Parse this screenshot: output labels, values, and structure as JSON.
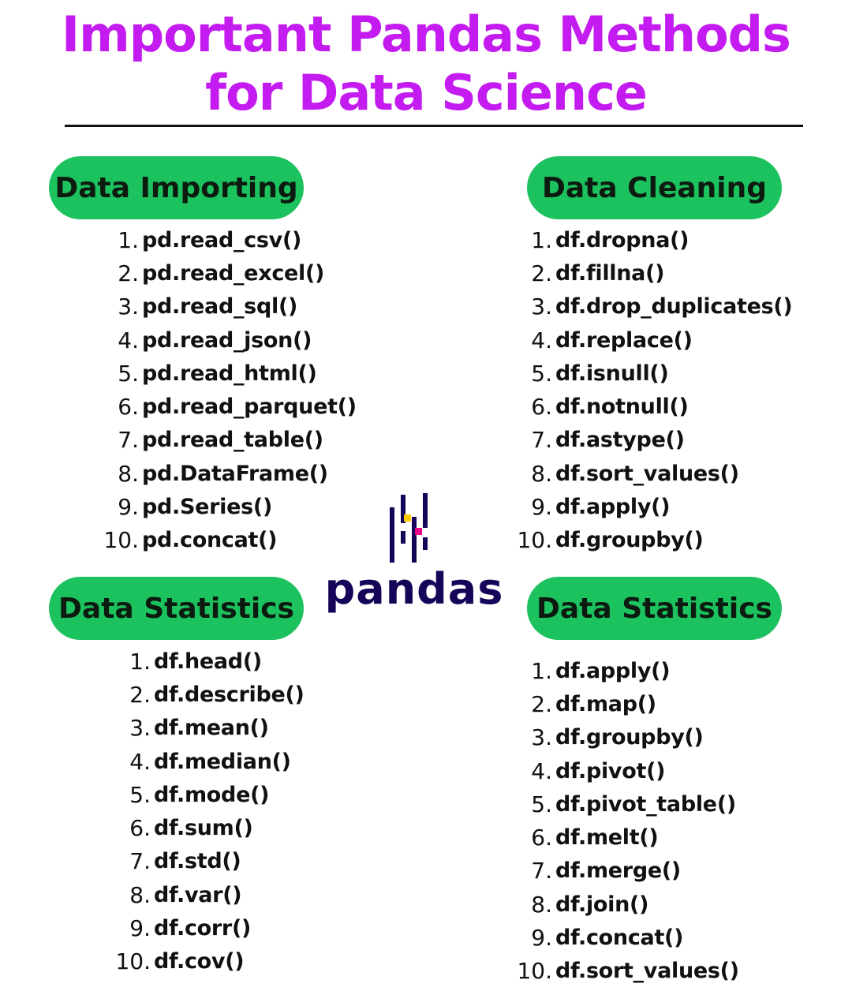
{
  "title": {
    "line1": "Important Pandas Methods",
    "line2": "for Data Science",
    "color": "#c41bf0"
  },
  "colors": {
    "pill": "#1cc25e",
    "logo_primary": "#150458",
    "logo_yellow": "#ffca00",
    "logo_pink": "#e70488"
  },
  "logo": {
    "icon": "pandas-logo-icon",
    "text": "pandas"
  },
  "sections": [
    {
      "heading": "Data Importing",
      "items": [
        {
          "num": "1.",
          "method": "pd.read_csv()"
        },
        {
          "num": "2.",
          "method": "pd.read_excel()"
        },
        {
          "num": "3.",
          "method": "pd.read_sql()"
        },
        {
          "num": "4.",
          "method": "pd.read_json()"
        },
        {
          "num": "5.",
          "method": "pd.read_html()"
        },
        {
          "num": "6.",
          "method": "pd.read_parquet()"
        },
        {
          "num": "7.",
          "method": "pd.read_table()"
        },
        {
          "num": "8.",
          "method": "pd.DataFrame()"
        },
        {
          "num": "9.",
          "method": "pd.Series()"
        },
        {
          "num": "10.",
          "method": "pd.concat()"
        }
      ]
    },
    {
      "heading": "Data Cleaning",
      "items": [
        {
          "num": "1.",
          "method": "df.dropna()"
        },
        {
          "num": "2.",
          "method": "df.fillna()"
        },
        {
          "num": "3.",
          "method": "df.drop_duplicates()"
        },
        {
          "num": "4.",
          "method": "df.replace()"
        },
        {
          "num": "5.",
          "method": "df.isnull()"
        },
        {
          "num": "6.",
          "method": "df.notnull()"
        },
        {
          "num": "7.",
          "method": "df.astype()"
        },
        {
          "num": "8.",
          "method": "df.sort_values()"
        },
        {
          "num": "9.",
          "method": "df.apply()"
        },
        {
          "num": "10.",
          "method": "df.groupby()"
        }
      ]
    },
    {
      "heading": "Data Statistics",
      "items": [
        {
          "num": "1.",
          "method": "df.head()"
        },
        {
          "num": "2.",
          "method": "df.describe()"
        },
        {
          "num": "3.",
          "method": "df.mean()"
        },
        {
          "num": "4.",
          "method": "df.median()"
        },
        {
          "num": "5.",
          "method": "df.mode()"
        },
        {
          "num": "6.",
          "method": "df.sum()"
        },
        {
          "num": "7.",
          "method": "df.std()"
        },
        {
          "num": "8.",
          "method": "df.var()"
        },
        {
          "num": "9.",
          "method": "df.corr()"
        },
        {
          "num": "10.",
          "method": "df.cov()"
        }
      ]
    },
    {
      "heading": "Data Statistics",
      "items": [
        {
          "num": "1.",
          "method": "df.apply()"
        },
        {
          "num": "2.",
          "method": "df.map()"
        },
        {
          "num": "3.",
          "method": "df.groupby()"
        },
        {
          "num": "4.",
          "method": "df.pivot()"
        },
        {
          "num": "5.",
          "method": "df.pivot_table()"
        },
        {
          "num": "6.",
          "method": "df.melt()"
        },
        {
          "num": "7.",
          "method": "df.merge()"
        },
        {
          "num": "8.",
          "method": "df.join()"
        },
        {
          "num": "9.",
          "method": "df.concat()"
        },
        {
          "num": "10.",
          "method": "df.sort_values()"
        }
      ]
    }
  ]
}
